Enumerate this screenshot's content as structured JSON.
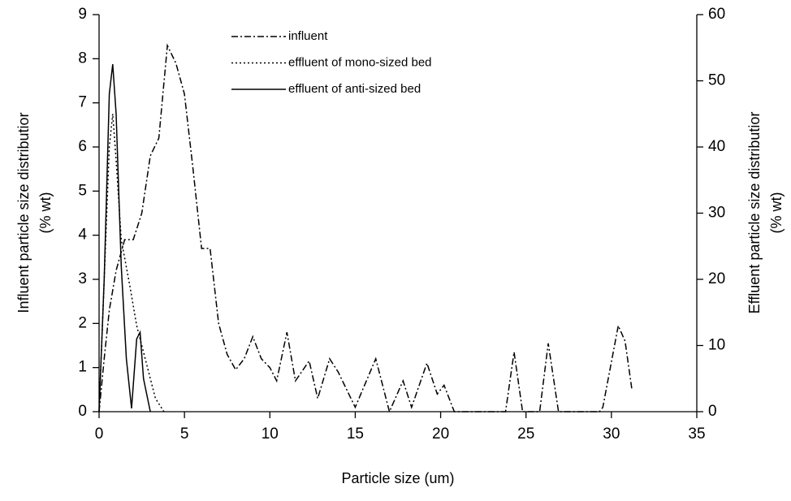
{
  "chart_data": {
    "type": "line",
    "xlabel": "Particle size  (um)",
    "ylabel": [
      "Influent particle size distributior",
      "(% wt)"
    ],
    "y2label": [
      "Effluent particle size distributior",
      "(% wt)"
    ],
    "xlim": [
      0,
      35
    ],
    "xticks": [
      0,
      5,
      10,
      15,
      20,
      25,
      30,
      35
    ],
    "ylim": [
      0,
      9
    ],
    "yticks": [
      0,
      1,
      2,
      3,
      4,
      5,
      6,
      7,
      8,
      9
    ],
    "y2lim": [
      0,
      60
    ],
    "y2ticks": [
      0,
      10,
      20,
      30,
      40,
      50,
      60
    ],
    "legend": "top",
    "series": [
      {
        "name": "influent",
        "color": "#000000",
        "dash": "8 3 2 3",
        "axis": "y",
        "x": [
          0,
          0.3,
          0.6,
          1.0,
          1.5,
          2.0,
          2.5,
          3.0,
          3.5,
          4.0,
          4.5,
          5.0,
          5.5,
          6.0,
          6.5,
          7.0,
          7.5,
          8.0,
          8.5,
          9.0,
          9.5,
          10.0,
          10.4,
          11.0,
          11.5,
          12.3,
          12.8,
          13.5,
          14.0,
          15.0,
          16.2,
          17.0,
          17.8,
          18.3,
          19.2,
          19.8,
          20.2,
          20.8,
          23.8,
          24.3,
          24.8,
          25.8,
          26.3,
          26.9,
          29.3,
          29.5,
          30.4,
          30.8,
          31.2
        ],
        "values": [
          0,
          1.2,
          2.3,
          3.2,
          3.9,
          3.9,
          4.5,
          5.8,
          6.2,
          8.3,
          7.9,
          7.2,
          5.5,
          3.7,
          3.7,
          2.0,
          1.3,
          0.95,
          1.2,
          1.7,
          1.2,
          1.0,
          0.7,
          1.8,
          0.7,
          1.15,
          0.3,
          1.2,
          0.9,
          0.1,
          1.2,
          0,
          0.7,
          0.1,
          1.1,
          0.4,
          0.6,
          0,
          0,
          1.35,
          0,
          0,
          1.55,
          0,
          0,
          0.1,
          1.95,
          1.6,
          0.5
        ]
      },
      {
        "name": "effluent of mono-sized bed",
        "color": "#000000",
        "dash": "2 3",
        "axis": "y2",
        "x": [
          0,
          0.3,
          0.6,
          0.8,
          1.0,
          1.3,
          1.8,
          2.2,
          2.8,
          3.3,
          3.8
        ],
        "values": [
          0,
          20,
          40,
          45,
          38,
          26,
          19,
          13,
          7,
          2,
          0
        ]
      },
      {
        "name": "effluent of anti-sized bed",
        "color": "#000000",
        "dash": "none",
        "axis": "y2",
        "x": [
          0,
          0.3,
          0.6,
          0.8,
          1.0,
          1.3,
          1.6,
          1.9,
          2.2,
          2.4,
          2.6,
          3.0
        ],
        "values": [
          0,
          20,
          48,
          52.5,
          45,
          22,
          8,
          0.5,
          11,
          12,
          5,
          0
        ]
      }
    ]
  }
}
